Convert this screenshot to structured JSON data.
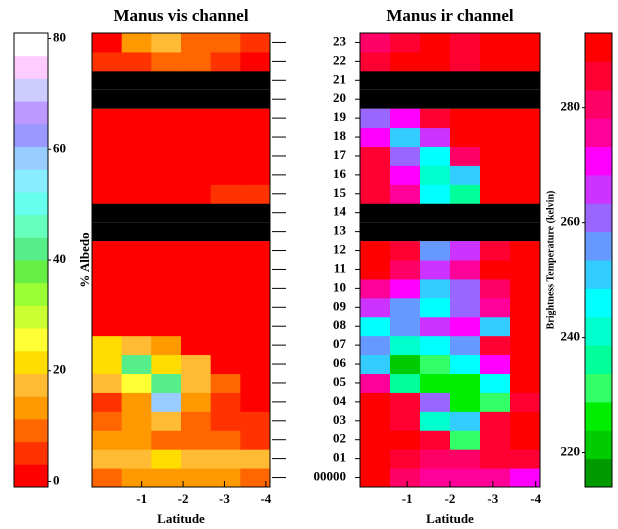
{
  "chart_data": [
    {
      "type": "heatmap",
      "title": "Manus vis channel",
      "xlabel": "Latitude",
      "zlabel": "% Albedo",
      "rows": [
        "00000",
        "01",
        "02",
        "03",
        "04",
        "05",
        "06",
        "07",
        "08",
        "09",
        "10",
        "11",
        "12",
        "13",
        "14",
        "15",
        "16",
        "17",
        "18",
        "19",
        "20",
        "21",
        "22",
        "23"
      ],
      "xlim": [
        0.2,
        -4.1
      ],
      "xticks": [
        -1,
        -2,
        -3,
        -4
      ],
      "zlim": [
        -1,
        81
      ],
      "zticks": [
        0,
        20,
        40,
        60,
        80
      ],
      "colors": [
        "#ff0000",
        "#ff3300",
        "#ff6600",
        "#ff9900",
        "#ffbb33",
        "#ffdd00",
        "#ffff33",
        "#ccff33",
        "#99ff33",
        "#66ee44",
        "#55ee88",
        "#66ffbb",
        "#66ffee",
        "#88eeff",
        "#99ccff",
        "#9999ff",
        "#bb99ff",
        "#ccccff",
        "#ffccff",
        "#ffffff"
      ],
      "values": [
        [
          10,
          12,
          14,
          12,
          13,
          8
        ],
        [
          18,
          18,
          20,
          19,
          18,
          18
        ],
        [
          14,
          12,
          10,
          8,
          10,
          6
        ],
        [
          8,
          14,
          16,
          10,
          6,
          4
        ],
        [
          6,
          14,
          60,
          12,
          5,
          2
        ],
        [
          16,
          24,
          40,
          18,
          8,
          2
        ],
        [
          22,
          40,
          20,
          18,
          2,
          2
        ],
        [
          20,
          16,
          14,
          2,
          2,
          2
        ],
        [
          2,
          2,
          2,
          2,
          2,
          2
        ],
        [
          2,
          2,
          2,
          2,
          2,
          2
        ],
        [
          2,
          2,
          2,
          2,
          2,
          2
        ],
        [
          2,
          2,
          2,
          2,
          2,
          2
        ],
        [
          2,
          2,
          2,
          2,
          2,
          2
        ],
        null,
        null,
        [
          2,
          2,
          2,
          2,
          6,
          4
        ],
        [
          2,
          2,
          2,
          2,
          2,
          2
        ],
        [
          2,
          2,
          2,
          2,
          2,
          2
        ],
        [
          2,
          2,
          2,
          2,
          2,
          2
        ],
        [
          2,
          2,
          2,
          2,
          2,
          2
        ],
        null,
        null,
        [
          6,
          4,
          8,
          10,
          6,
          2
        ],
        [
          2,
          12,
          16,
          10,
          8,
          4
        ]
      ]
    },
    {
      "type": "heatmap",
      "title": "Manus ir channel",
      "xlabel": "Latitude",
      "zlabel": "Brightness Temperature (kelvin)",
      "xlim": [
        0.1,
        -4.1
      ],
      "xticks": [
        -1,
        -2,
        -3,
        -4
      ],
      "zlim": [
        214,
        293
      ],
      "zticks": [
        220,
        240,
        260,
        280
      ],
      "colors": [
        "#009900",
        "#00cc00",
        "#00ee00",
        "#33ff66",
        "#00ff99",
        "#00ffcc",
        "#00ffff",
        "#33ccff",
        "#6699ff",
        "#9966ff",
        "#cc33ff",
        "#ff00ff",
        "#ff0099",
        "#ff0066",
        "#ff0033",
        "#ff0000"
      ],
      "values": [
        [
          290,
          280,
          275,
          278,
          275,
          272
        ],
        [
          290,
          285,
          282,
          280,
          286,
          288
        ],
        [
          290,
          290,
          286,
          230,
          288,
          290
        ],
        [
          290,
          288,
          240,
          250,
          286,
          290
        ],
        [
          290,
          285,
          260,
          225,
          230,
          288
        ],
        [
          275,
          235,
          225,
          228,
          245,
          290
        ],
        [
          250,
          220,
          232,
          245,
          270,
          290
        ],
        [
          255,
          240,
          248,
          255,
          288,
          290
        ],
        [
          245,
          255,
          265,
          270,
          250,
          290
        ],
        [
          265,
          255,
          245,
          262,
          275,
          290
        ],
        [
          275,
          270,
          250,
          260,
          280,
          290
        ],
        [
          290,
          280,
          268,
          275,
          290,
          290
        ],
        [
          290,
          285,
          255,
          265,
          285,
          290
        ],
        null,
        null,
        [
          285,
          275,
          245,
          235,
          290,
          290
        ],
        [
          285,
          270,
          240,
          250,
          290,
          290
        ],
        [
          285,
          260,
          245,
          280,
          290,
          290
        ],
        [
          270,
          250,
          265,
          290,
          290,
          290
        ],
        [
          260,
          270,
          285,
          290,
          290,
          290
        ],
        null,
        null,
        [
          285,
          290,
          290,
          288,
          290,
          290
        ],
        [
          280,
          288,
          290,
          285,
          290,
          290
        ]
      ]
    }
  ]
}
